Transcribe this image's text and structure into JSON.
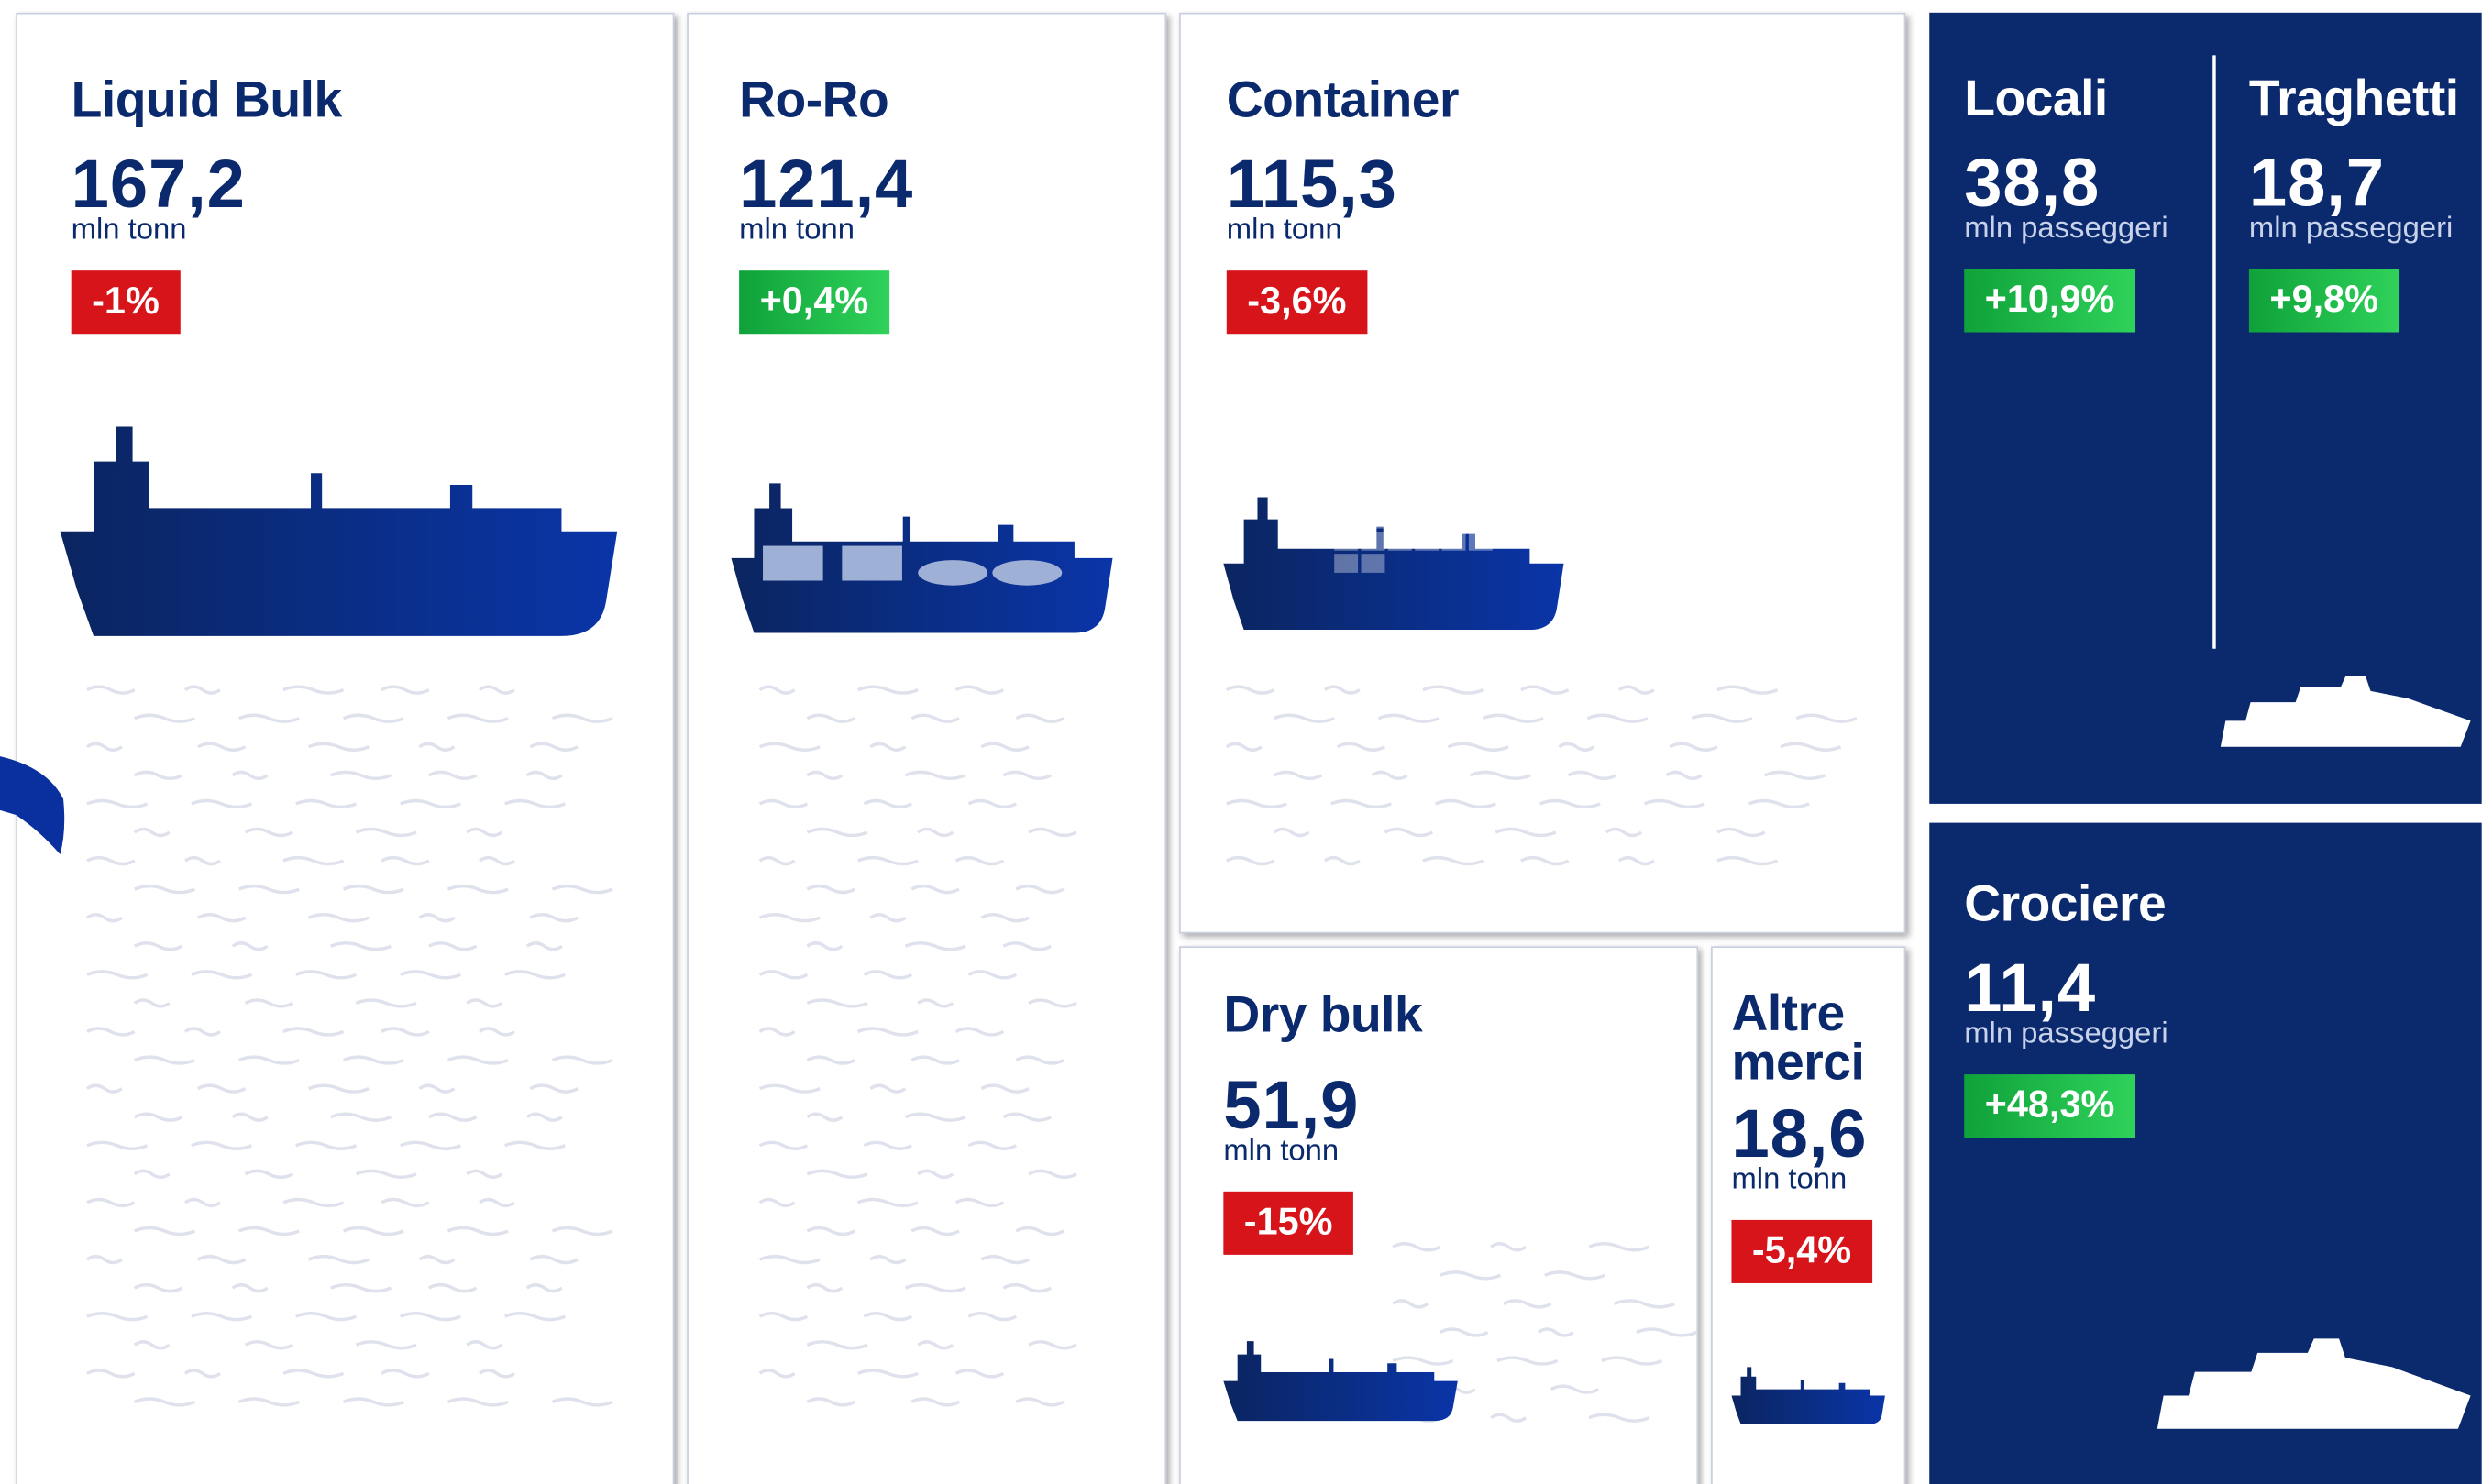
{
  "tiles": [
    {
      "title": "Liquid Bulk",
      "value": "167,2",
      "unit": "mln tonn",
      "change": "-1%",
      "color": "#d7141a"
    },
    {
      "title": "Ro-Ro",
      "value": "121,4",
      "unit": "mln tonn",
      "change": "+0,4%",
      "color": "#1db544"
    },
    {
      "title": "Container",
      "value": "115,3",
      "unit": "mln tonn",
      "change": "-3,6%",
      "color": "#d7141a"
    },
    {
      "title": "Dry bulk",
      "value": "51,9",
      "unit": "mln tonn",
      "change": "-15%",
      "color": "#d7141a"
    },
    {
      "title": "Altre merci",
      "value": "18,6",
      "unit": "mln tonn",
      "change": "-5,4%",
      "color": "#d7141a"
    },
    {
      "title": "Locali",
      "value": "38,8",
      "unit": "mln passeggeri",
      "change": "+10,9%",
      "color": "#1db544"
    },
    {
      "title": "Traghetti",
      "value": "18,7",
      "unit": "mln passeggeri",
      "change": "+9,8%",
      "color": "#1db544"
    },
    {
      "title": "Crociere",
      "value": "11,4",
      "unit": "mln passeggeri",
      "change": "+48,3%",
      "color": "#1db544"
    }
  ]
}
